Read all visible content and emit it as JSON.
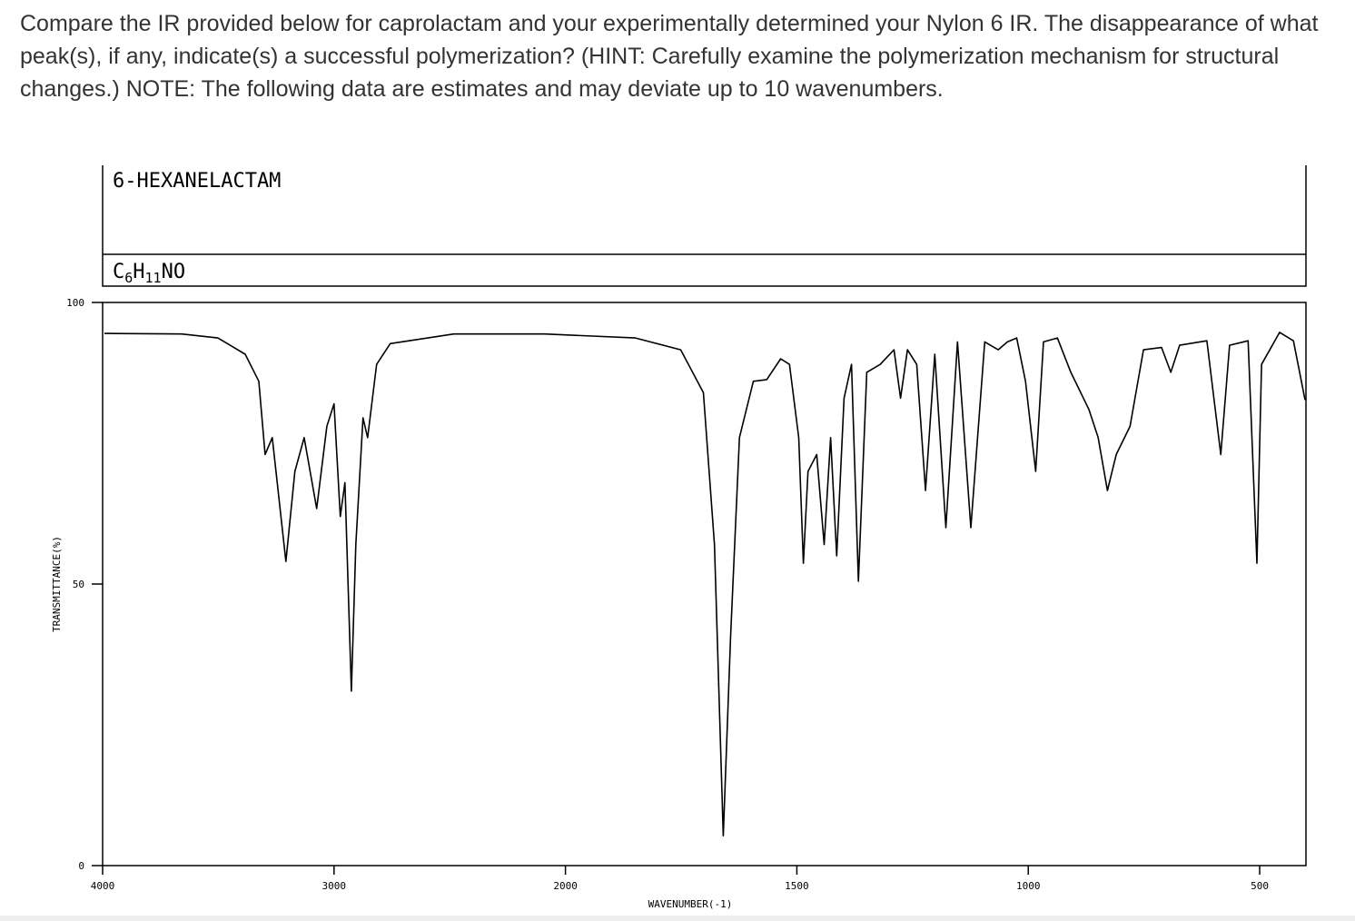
{
  "question": "Compare the IR provided below for caprolactam and your experimentally determined your Nylon 6 IR. The disappearance of what peak(s), if any, indicate(s) a successful polymerization? (HINT: Carefully examine the polymerization mechanism for structural changes.) NOTE: The following data are estimates and may deviate up to 10 wavenumbers.",
  "chart_data": {
    "type": "line",
    "title": "6-HEXANELACTAM",
    "formula": [
      "C",
      "6",
      "H",
      "11",
      "NO"
    ],
    "x_label": "WAVENUMBER(-1)",
    "y_label": "TRANSMITTANCE(%)",
    "color": "#000000",
    "xlim": [
      4000,
      400
    ],
    "ylim": [
      0,
      100
    ],
    "xticks": [
      4000,
      3000,
      2000,
      1500,
      1000,
      500
    ],
    "yticks": [
      0,
      50,
      100
    ],
    "x": [
      3992,
      3659,
      3502,
      3384,
      3325,
      3298,
      3267,
      3208,
      3169,
      3129,
      3075,
      3031,
      3000,
      2973,
      2953,
      2925,
      2906,
      2875,
      2855,
      2816,
      2757,
      2482,
      2090,
      1849,
      1751,
      1702,
      1678,
      1659,
      1643,
      1624,
      1594,
      1565,
      1535,
      1516,
      1496,
      1486,
      1476,
      1457,
      1441,
      1427,
      1414,
      1398,
      1382,
      1367,
      1349,
      1320,
      1290,
      1276,
      1261,
      1241,
      1222,
      1202,
      1178,
      1153,
      1124,
      1094,
      1065,
      1045,
      1025,
      1006,
      984,
      967,
      937,
      908,
      869,
      849,
      829,
      810,
      780,
      751,
      712,
      692,
      673,
      614,
      584,
      565,
      525,
      506,
      496,
      457,
      427,
      402
    ],
    "values": [
      94.5,
      94.4,
      93.7,
      90.8,
      86,
      73,
      76,
      54,
      70,
      76,
      63.4,
      78,
      82,
      62,
      68,
      31,
      57,
      79.5,
      76,
      89,
      92.7,
      94.4,
      94.4,
      93.7,
      91.6,
      84,
      57,
      5.3,
      40.8,
      76,
      86,
      86.3,
      90,
      89,
      76,
      53.7,
      70,
      73,
      57,
      76,
      55,
      83,
      89,
      50.5,
      87.6,
      89,
      91.6,
      83,
      91.6,
      89,
      66.6,
      90.8,
      60,
      93,
      60,
      93,
      91.6,
      93,
      93.7,
      86,
      70,
      93,
      93.7,
      87.6,
      81,
      76,
      66.6,
      73,
      78,
      91.6,
      92,
      87.6,
      92.4,
      93.2,
      73,
      92.4,
      93.2,
      53.7,
      89,
      94.7,
      93.2,
      82.7
    ]
  }
}
